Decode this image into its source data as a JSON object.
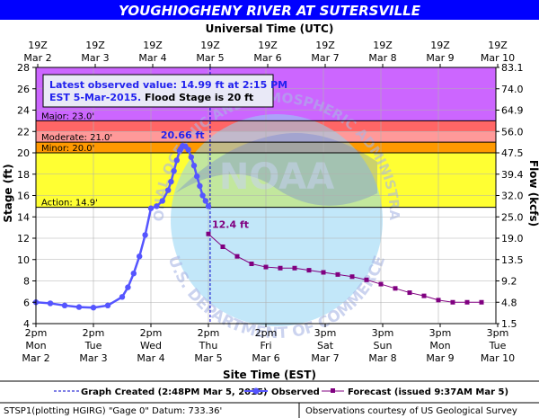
{
  "title": "YOUGHIOGHENY RIVER AT SUTERSVILLE",
  "top_axis_label": "Universal Time (UTC)",
  "bottom_axis_label": "Site Time (EST)",
  "left_axis_label": "Stage (ft)",
  "right_axis_label": "Flow (kcfs)",
  "info_box": {
    "line1": "Latest observed value: 14.99 ft at 2:15 PM",
    "line2a": "EST 5-Mar-2015.",
    "line2b": " Flood Stage is 20 ft"
  },
  "peak_label": "20.66 ft",
  "forecast_label": "12.4 ft",
  "watermark_text": "NATIONAL OCEANIC AND ATMOSPHERIC ADMINISTRATION · U.S. DEPARTMENT OF COMMERCE",
  "watermark_logo": "NOAA",
  "legend": {
    "graph_created": "Graph Created (2:48PM Mar 5, 2015)",
    "observed": "Observed",
    "forecast": "Forecast (issued 9:37AM Mar 5)"
  },
  "footer": {
    "left": "STSP1(plotting HGIRG) \"Gage 0\" Datum: 733.36'",
    "right": "Observations courtesy of US Geological Survey"
  },
  "colors": {
    "title_bg": "#0000ff",
    "major": "#cc66ff",
    "moderate_major": "#ff6666",
    "moderate": "#ff9999",
    "minor": "#ff9900",
    "action": "#ffff33",
    "observed": "#5555ff",
    "forecast": "#800080",
    "plot_bg": "#ffffff"
  },
  "chart_data": {
    "type": "line",
    "x_range": [
      "2015-03-02 14:00",
      "2015-03-10 14:00"
    ],
    "ylim": [
      4,
      28
    ],
    "yticks": [
      4,
      6,
      8,
      10,
      12,
      14,
      16,
      18,
      20,
      22,
      24,
      26,
      28
    ],
    "flow_ticks": [
      "1.5",
      "4.8",
      "9.2",
      "13.5",
      "19.0",
      "25.0",
      "32.0",
      "39.4",
      "47.5",
      "56.0",
      "64.9",
      "74.0",
      "83.1"
    ],
    "top_ticks": [
      {
        "hour": "19Z",
        "date": "Mar 2"
      },
      {
        "hour": "19Z",
        "date": "Mar 3"
      },
      {
        "hour": "19Z",
        "date": "Mar 4"
      },
      {
        "hour": "19Z",
        "date": "Mar 5"
      },
      {
        "hour": "19Z",
        "date": "Mar 6"
      },
      {
        "hour": "19Z",
        "date": "Mar 7"
      },
      {
        "hour": "19Z",
        "date": "Mar 8"
      },
      {
        "hour": "19Z",
        "date": "Mar 9"
      },
      {
        "hour": "19Z",
        "date": "Mar 10"
      }
    ],
    "bottom_ticks": [
      {
        "time": "2pm",
        "day": "Mon",
        "date": "Mar 2"
      },
      {
        "time": "2pm",
        "day": "Tue",
        "date": "Mar 3"
      },
      {
        "time": "2pm",
        "day": "Wed",
        "date": "Mar 4"
      },
      {
        "time": "2pm",
        "day": "Thu",
        "date": "Mar 5"
      },
      {
        "time": "2pm",
        "day": "Fri",
        "date": "Mar 6"
      },
      {
        "time": "3pm",
        "day": "Sat",
        "date": "Mar 7"
      },
      {
        "time": "3pm",
        "day": "Sun",
        "date": "Mar 8"
      },
      {
        "time": "3pm",
        "day": "Mon",
        "date": "Mar 9"
      },
      {
        "time": "3pm",
        "day": "Tue",
        "date": "Mar 10"
      }
    ],
    "thresholds": [
      {
        "name": "Major",
        "label": "Major: 23.0'",
        "value": 23.0
      },
      {
        "name": "Moderate",
        "label": "Moderate: 21.0'",
        "value": 21.0
      },
      {
        "name": "Minor",
        "label": "Minor: 20.0'",
        "value": 20.0
      },
      {
        "name": "Action",
        "label": "Action: 14.9'",
        "value": 14.9
      }
    ],
    "graph_created_x": 3.03,
    "series": [
      {
        "name": "Observed",
        "x": [
          0.0,
          0.25,
          0.5,
          0.75,
          1.0,
          1.25,
          1.5,
          1.6,
          1.7,
          1.8,
          1.9,
          2.0,
          2.1,
          2.2,
          2.3,
          2.35,
          2.4,
          2.45,
          2.5,
          2.52,
          2.55,
          2.6,
          2.65,
          2.7,
          2.75,
          2.8,
          2.85,
          2.9,
          2.95,
          3.0
        ],
        "y": [
          6.0,
          5.9,
          5.7,
          5.55,
          5.5,
          5.7,
          6.5,
          7.4,
          8.7,
          10.3,
          12.3,
          14.8,
          15.0,
          15.5,
          16.5,
          17.3,
          18.3,
          19.3,
          20.2,
          20.4,
          20.66,
          20.6,
          20.3,
          19.6,
          18.8,
          17.8,
          16.9,
          16.0,
          15.5,
          15.0
        ]
      },
      {
        "name": "Forecast",
        "x": [
          3.0,
          3.25,
          3.5,
          3.75,
          4.0,
          4.25,
          4.5,
          4.75,
          5.0,
          5.25,
          5.5,
          5.75,
          6.0,
          6.25,
          6.5,
          6.75,
          7.0,
          7.25,
          7.5,
          7.75
        ],
        "y": [
          12.4,
          11.2,
          10.3,
          9.6,
          9.3,
          9.2,
          9.2,
          9.0,
          8.8,
          8.6,
          8.4,
          8.1,
          7.7,
          7.3,
          6.9,
          6.6,
          6.2,
          6.0,
          6.0,
          6.0
        ]
      }
    ]
  }
}
